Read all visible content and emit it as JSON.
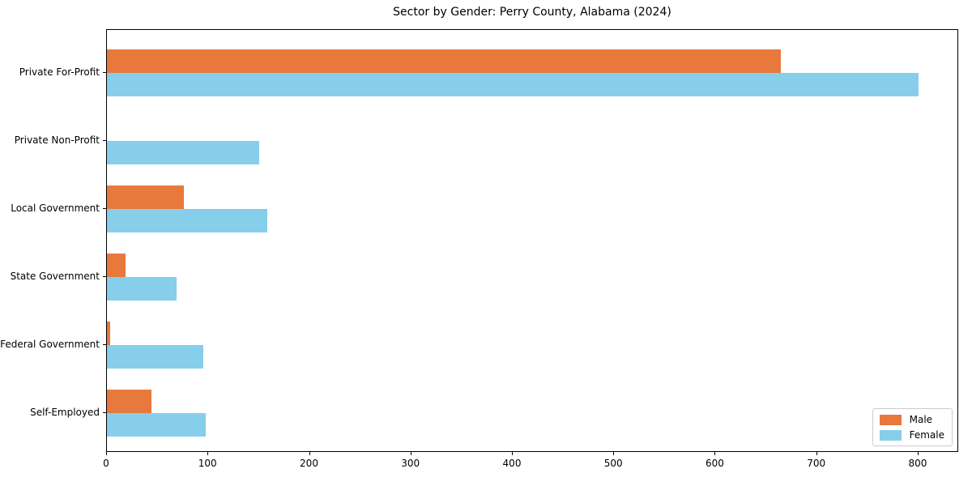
{
  "chart_data": {
    "type": "bar",
    "orientation": "horizontal",
    "title": "Sector by Gender: Perry County, Alabama (2024)",
    "categories": [
      "Private For-Profit",
      "Private Non-Profit",
      "Local Government",
      "State Government",
      "Federal Government",
      "Self-Employed"
    ],
    "series": [
      {
        "name": "Male",
        "color": "#e8793d",
        "values": [
          664,
          0,
          76,
          18,
          3,
          44
        ]
      },
      {
        "name": "Female",
        "color": "#87ceeb",
        "values": [
          800,
          150,
          158,
          69,
          95,
          97
        ]
      }
    ],
    "xlabel": "",
    "ylabel": "",
    "xlim": [
      0,
      840
    ],
    "xticks": [
      0,
      100,
      200,
      300,
      400,
      500,
      600,
      700,
      800
    ],
    "grid": false,
    "legend_position": "lower right",
    "background_color": "#ffffff",
    "spine_color": "#000000"
  }
}
